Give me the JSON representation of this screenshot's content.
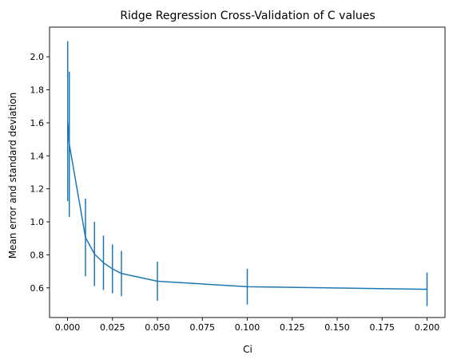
{
  "chart_data": {
    "type": "line",
    "title": "Ridge Regression Cross-Validation of C values",
    "xlabel": "Ci",
    "ylabel": "Mean error and standard deviation",
    "xlim": [
      -0.01,
      0.21
    ],
    "ylim": [
      0.42,
      2.18
    ],
    "x_ticks": [
      0.0,
      0.025,
      0.05,
      0.075,
      0.1,
      0.125,
      0.15,
      0.175,
      0.2
    ],
    "x_tick_labels": [
      "0.000",
      "0.025",
      "0.050",
      "0.075",
      "0.100",
      "0.125",
      "0.150",
      "0.175",
      "0.200"
    ],
    "y_ticks": [
      0.6,
      0.8,
      1.0,
      1.2,
      1.4,
      1.6,
      1.8,
      2.0
    ],
    "y_tick_labels": [
      "0.6",
      "0.8",
      "1.0",
      "1.2",
      "1.4",
      "1.6",
      "1.8",
      "2.0"
    ],
    "grid": false,
    "series": [
      {
        "color": "#1f77b4",
        "x": [
          0.0001,
          0.001,
          0.01,
          0.015,
          0.02,
          0.025,
          0.03,
          0.05,
          0.1,
          0.2
        ],
        "y": [
          1.61,
          1.47,
          0.905,
          0.805,
          0.752,
          0.715,
          0.687,
          0.64,
          0.607,
          0.591
        ],
        "err": [
          0.485,
          0.44,
          0.235,
          0.195,
          0.165,
          0.148,
          0.137,
          0.118,
          0.108,
          0.102
        ]
      }
    ]
  }
}
